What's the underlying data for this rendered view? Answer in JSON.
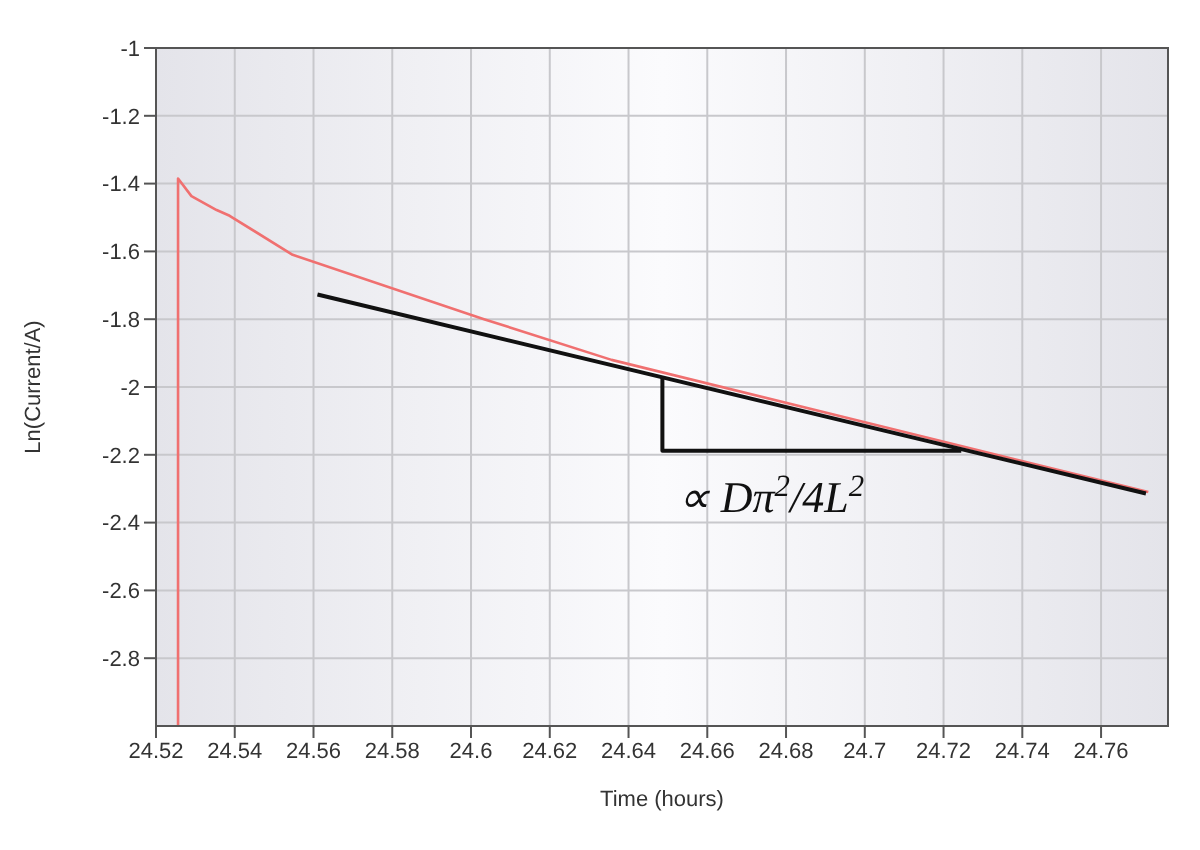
{
  "chart_data": {
    "type": "line",
    "xlabel": "Time (hours)",
    "ylabel": "Ln(Current/A)",
    "xlim": [
      24.52,
      24.777
    ],
    "ylim": [
      -3,
      -1
    ],
    "xticks": [
      24.52,
      24.54,
      24.56,
      24.58,
      24.6,
      24.62,
      24.64,
      24.66,
      24.68,
      24.7,
      24.72,
      24.74,
      24.76
    ],
    "yticks": [
      -1,
      -1.2,
      -1.4,
      -1.6,
      -1.8,
      -2,
      -2.2,
      -2.4,
      -2.6,
      -2.8
    ],
    "grid": true,
    "marker": "none",
    "line_style": "solid",
    "series": [
      {
        "color": "#f07070",
        "x": [
          24.5256,
          24.5256,
          24.529,
          24.5354,
          24.5387,
          24.5547,
          24.6033,
          24.6357,
          24.772
        ],
        "values": [
          -3,
          -1.385,
          -1.437,
          -1.478,
          -1.495,
          -1.61,
          -1.8,
          -1.92,
          -2.31
        ]
      },
      {
        "color": "#111111",
        "x": [
          24.561,
          24.7714
        ],
        "values": [
          -1.727,
          -2.314
        ]
      },
      {
        "color": "#111111",
        "x": [
          24.6486,
          24.6486,
          24.7245
        ],
        "values": [
          -1.973,
          -2.188,
          -2.188
        ]
      }
    ],
    "annotations": [
      "∝ Dπ$^{2}$/4L$^{2}$"
    ]
  }
}
